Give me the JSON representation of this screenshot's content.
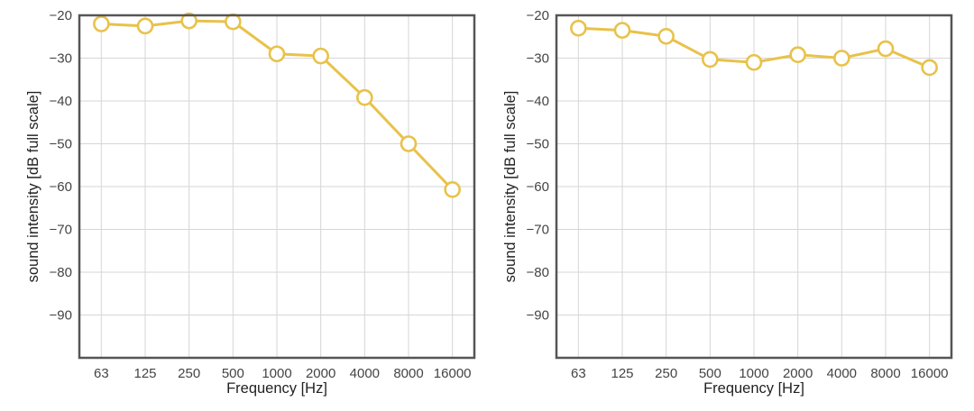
{
  "chart_data": [
    {
      "type": "line",
      "xlabel": "Frequency [Hz]",
      "ylabel": "sound intensity [dB full scale]",
      "categories": [
        "63",
        "125",
        "250",
        "500",
        "1000",
        "2000",
        "4000",
        "8000",
        "16000"
      ],
      "ylim": [
        -100,
        -20
      ],
      "yticks": [
        -20,
        -30,
        -40,
        -50,
        -60,
        -70,
        -80,
        -90
      ],
      "grid": true,
      "series": [
        {
          "values": [
            -22,
            -22.5,
            -21.3,
            -21.5,
            -29,
            -29.5,
            -39.2,
            -50,
            -60.7
          ]
        }
      ]
    },
    {
      "type": "line",
      "xlabel": "Frequency [Hz]",
      "ylabel": "sound intensity [dB full scale]",
      "categories": [
        "63",
        "125",
        "250",
        "500",
        "1000",
        "2000",
        "4000",
        "8000",
        "16000"
      ],
      "ylim": [
        -100,
        -20
      ],
      "yticks": [
        -20,
        -30,
        -40,
        -50,
        -60,
        -70,
        -80,
        -90
      ],
      "grid": true,
      "series": [
        {
          "values": [
            -23,
            -23.5,
            -24.9,
            -30.3,
            -31,
            -29.2,
            -30,
            -27.8,
            -32.2
          ]
        }
      ]
    }
  ],
  "style": {
    "line_color": "#e8c24a",
    "marker_fill": "#ffffff",
    "grid_color": "#d6d6d6",
    "frame_color": "#555555"
  }
}
